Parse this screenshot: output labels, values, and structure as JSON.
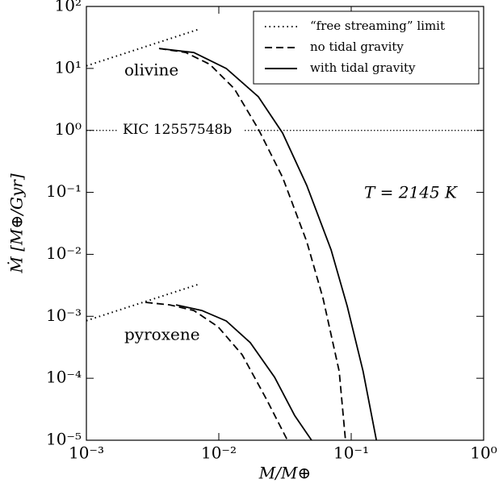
{
  "chart_data": {
    "type": "line",
    "xlabel": "M/M⊕",
    "ylabel": "Ṁ [M⊕/Gyr]",
    "xscale": "log",
    "yscale": "log",
    "xlim": [
      0.001,
      1
    ],
    "ylim": [
      1e-05,
      100
    ],
    "xticks": [
      {
        "value": 0.001,
        "label": "10⁻³"
      },
      {
        "value": 0.01,
        "label": "10⁻²"
      },
      {
        "value": 0.1,
        "label": "10⁻¹"
      },
      {
        "value": 1,
        "label": "10⁰"
      }
    ],
    "yticks": [
      {
        "value": 1e-05,
        "label": "10⁻⁵"
      },
      {
        "value": 0.0001,
        "label": "10⁻⁴"
      },
      {
        "value": 0.001,
        "label": "10⁻³"
      },
      {
        "value": 0.01,
        "label": "10⁻²"
      },
      {
        "value": 0.1,
        "label": "10⁻¹"
      },
      {
        "value": 1,
        "label": "10⁰"
      },
      {
        "value": 10,
        "label": "10¹"
      },
      {
        "value": 100,
        "label": "10²"
      }
    ],
    "legend": "upper right",
    "hlines": [
      {
        "value": 1,
        "label": "KIC 12557548b",
        "color": "#555555"
      }
    ],
    "annotations": [
      "olivine",
      "pyroxene",
      "T = 2145 K"
    ],
    "series": [
      {
        "name": "“free streaming” limit",
        "style": "dotted",
        "color": "#000000",
        "x": [
          0.001,
          0.0071
        ],
        "values": [
          11,
          43
        ]
      },
      {
        "name": "no tidal gravity",
        "style": "dashed",
        "color": "#000000",
        "x": [
          0.00354,
          0.00562,
          0.00857,
          0.0131,
          0.0199,
          0.0303,
          0.0462,
          0.0613,
          0.0811,
          0.0905
        ],
        "values": [
          21,
          18.1,
          11.6,
          4.71,
          1.05,
          0.175,
          0.0159,
          0.00195,
          0.00013,
          1e-05
        ]
      },
      {
        "name": "with tidal gravity",
        "style": "solid",
        "color": "#000000",
        "x": [
          0.00354,
          0.00647,
          0.0114,
          0.0199,
          0.0303,
          0.0462,
          0.0705,
          0.0933,
          0.123,
          0.155
        ],
        "values": [
          21,
          18.1,
          9.95,
          3.49,
          0.906,
          0.129,
          0.0118,
          0.00145,
          0.00013,
          1e-05
        ]
      },
      {
        "name": "“free streaming” limit",
        "style": "dotted",
        "color": "#000000",
        "x": [
          0.001,
          0.0071
        ],
        "values": [
          0.00085,
          0.0033
        ]
      },
      {
        "name": "no tidal gravity",
        "style": "dashed",
        "color": "#000000",
        "x": [
          0.00279,
          0.00425,
          0.00647,
          0.00986,
          0.015,
          0.0229,
          0.033
        ],
        "values": [
          0.00168,
          0.00153,
          0.00124,
          0.00068,
          0.00024,
          4.6e-05,
          1e-05
        ]
      },
      {
        "name": "with tidal gravity",
        "style": "solid",
        "color": "#000000",
        "x": [
          0.00475,
          0.00745,
          0.0114,
          0.0173,
          0.0264,
          0.0374,
          0.0502
        ],
        "values": [
          0.00153,
          0.00124,
          0.00084,
          0.000375,
          0.000104,
          2.5e-05,
          1e-05
        ]
      }
    ]
  }
}
